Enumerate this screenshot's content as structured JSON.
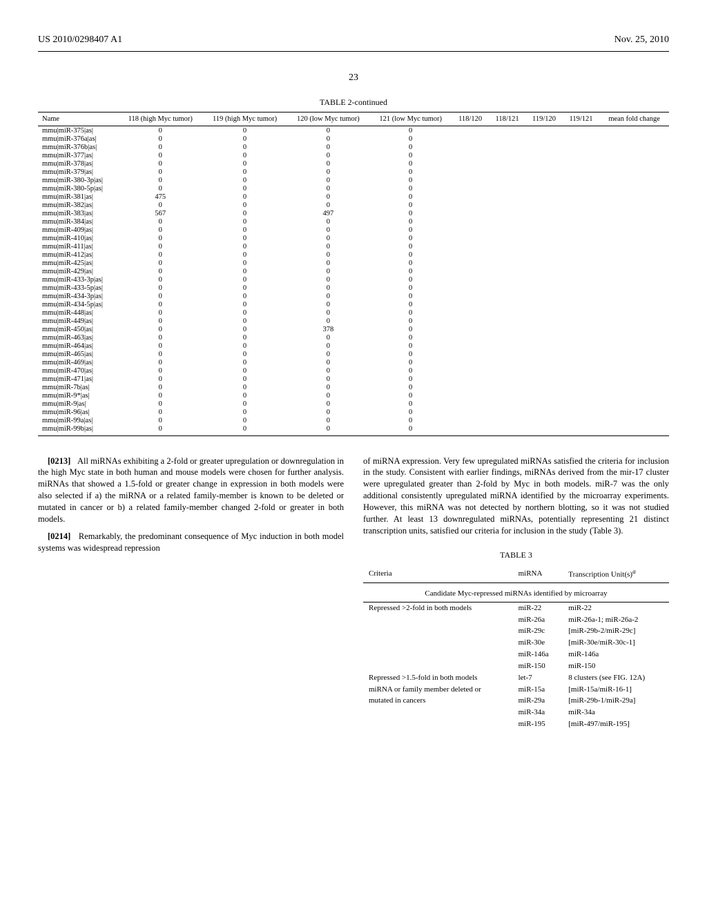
{
  "header": {
    "left": "US 2010/0298407 A1",
    "right": "Nov. 25, 2010"
  },
  "page_number": "23",
  "table2": {
    "title": "TABLE 2-continued",
    "columns": [
      "Name",
      "118 (high Myc tumor)",
      "119 (high Myc tumor)",
      "120 (low Myc tumor)",
      "121 (low Myc tumor)",
      "118/120",
      "118/121",
      "119/120",
      "119/121",
      "mean fold change"
    ],
    "rows": [
      [
        "mmu|miR-375|as|",
        "0",
        "0",
        "0",
        "0",
        "",
        "",
        "",
        "",
        ""
      ],
      [
        "mmu|miR-376a|as|",
        "0",
        "0",
        "0",
        "0",
        "",
        "",
        "",
        "",
        ""
      ],
      [
        "mmu|miR-376b|as|",
        "0",
        "0",
        "0",
        "0",
        "",
        "",
        "",
        "",
        ""
      ],
      [
        "mmu|miR-377|as|",
        "0",
        "0",
        "0",
        "0",
        "",
        "",
        "",
        "",
        ""
      ],
      [
        "mmu|miR-378|as|",
        "0",
        "0",
        "0",
        "0",
        "",
        "",
        "",
        "",
        ""
      ],
      [
        "mmu|miR-379|as|",
        "0",
        "0",
        "0",
        "0",
        "",
        "",
        "",
        "",
        ""
      ],
      [
        "mmu|miR-380-3p|as|",
        "0",
        "0",
        "0",
        "0",
        "",
        "",
        "",
        "",
        ""
      ],
      [
        "mmu|miR-380-5p|as|",
        "0",
        "0",
        "0",
        "0",
        "",
        "",
        "",
        "",
        ""
      ],
      [
        "mmu|miR-381|as|",
        "475",
        "0",
        "0",
        "0",
        "",
        "",
        "",
        "",
        ""
      ],
      [
        "mmu|miR-382|as|",
        "0",
        "0",
        "0",
        "0",
        "",
        "",
        "",
        "",
        ""
      ],
      [
        "mmu|miR-383|as|",
        "567",
        "0",
        "497",
        "0",
        "",
        "",
        "",
        "",
        ""
      ],
      [
        "mmu|miR-384|as|",
        "0",
        "0",
        "0",
        "0",
        "",
        "",
        "",
        "",
        ""
      ],
      [
        "mmu|miR-409|as|",
        "0",
        "0",
        "0",
        "0",
        "",
        "",
        "",
        "",
        ""
      ],
      [
        "mmu|miR-410|as|",
        "0",
        "0",
        "0",
        "0",
        "",
        "",
        "",
        "",
        ""
      ],
      [
        "mmu|miR-411|as|",
        "0",
        "0",
        "0",
        "0",
        "",
        "",
        "",
        "",
        ""
      ],
      [
        "mmu|miR-412|as|",
        "0",
        "0",
        "0",
        "0",
        "",
        "",
        "",
        "",
        ""
      ],
      [
        "mmu|miR-425|as|",
        "0",
        "0",
        "0",
        "0",
        "",
        "",
        "",
        "",
        ""
      ],
      [
        "mmu|miR-429|as|",
        "0",
        "0",
        "0",
        "0",
        "",
        "",
        "",
        "",
        ""
      ],
      [
        "mmu|miR-433-3p|as|",
        "0",
        "0",
        "0",
        "0",
        "",
        "",
        "",
        "",
        ""
      ],
      [
        "mmu|miR-433-5p|as|",
        "0",
        "0",
        "0",
        "0",
        "",
        "",
        "",
        "",
        ""
      ],
      [
        "mmu|miR-434-3p|as|",
        "0",
        "0",
        "0",
        "0",
        "",
        "",
        "",
        "",
        ""
      ],
      [
        "mmu|miR-434-5p|as|",
        "0",
        "0",
        "0",
        "0",
        "",
        "",
        "",
        "",
        ""
      ],
      [
        "mmu|miR-448|as|",
        "0",
        "0",
        "0",
        "0",
        "",
        "",
        "",
        "",
        ""
      ],
      [
        "mmu|miR-449|as|",
        "0",
        "0",
        "0",
        "0",
        "",
        "",
        "",
        "",
        ""
      ],
      [
        "mmu|miR-450|as|",
        "0",
        "0",
        "378",
        "0",
        "",
        "",
        "",
        "",
        ""
      ],
      [
        "mmu|miR-463|as|",
        "0",
        "0",
        "0",
        "0",
        "",
        "",
        "",
        "",
        ""
      ],
      [
        "mmu|miR-464|as|",
        "0",
        "0",
        "0",
        "0",
        "",
        "",
        "",
        "",
        ""
      ],
      [
        "mmu|miR-465|as|",
        "0",
        "0",
        "0",
        "0",
        "",
        "",
        "",
        "",
        ""
      ],
      [
        "mmu|miR-469|as|",
        "0",
        "0",
        "0",
        "0",
        "",
        "",
        "",
        "",
        ""
      ],
      [
        "mmu|miR-470|as|",
        "0",
        "0",
        "0",
        "0",
        "",
        "",
        "",
        "",
        ""
      ],
      [
        "mmu|miR-471|as|",
        "0",
        "0",
        "0",
        "0",
        "",
        "",
        "",
        "",
        ""
      ],
      [
        "mmu|miR-7b|as|",
        "0",
        "0",
        "0",
        "0",
        "",
        "",
        "",
        "",
        ""
      ],
      [
        "mmu|miR-9*|as|",
        "0",
        "0",
        "0",
        "0",
        "",
        "",
        "",
        "",
        ""
      ],
      [
        "mmu|miR-9|as|",
        "0",
        "0",
        "0",
        "0",
        "",
        "",
        "",
        "",
        ""
      ],
      [
        "mmu|miR-96|as|",
        "0",
        "0",
        "0",
        "0",
        "",
        "",
        "",
        "",
        ""
      ],
      [
        "mmu|miR-99a|as|",
        "0",
        "0",
        "0",
        "0",
        "",
        "",
        "",
        "",
        ""
      ],
      [
        "mmu|miR-99b|as|",
        "0",
        "0",
        "0",
        "0",
        "",
        "",
        "",
        "",
        ""
      ]
    ]
  },
  "paragraphs": {
    "p0213_num": "[0213]",
    "p0213": "All miRNAs exhibiting a 2-fold or greater upregulation or downregulation in the high Myc state in both human and mouse models were chosen for further analysis. miRNAs that showed a 1.5-fold or greater change in expression in both models were also selected if a) the miRNA or a related family-member is known to be deleted or mutated in cancer or b) a related family-member changed 2-fold or greater in both models.",
    "p0214_num": "[0214]",
    "p0214": "Remarkably, the predominant consequence of Myc induction in both model systems was widespread repression",
    "col2_p1": "of miRNA expression. Very few upregulated miRNAs satisfied the criteria for inclusion in the study. Consistent with earlier findings, miRNAs derived from the mir-17 cluster were upregulated greater than 2-fold by Myc in both models. miR-7 was the only additional consistently upregulated miRNA identified by the microarray experiments. However, this miRNA was not detected by northern blotting, so it was not studied further. At least 13 downregulated miRNAs, potentially representing 21 distinct transcription units, satisfied our criteria for inclusion in the study (Table 3)."
  },
  "table3": {
    "title": "TABLE 3",
    "caption": "Candidate Myc-repressed miRNAs identified by microarray",
    "columns": [
      "Criteria",
      "miRNA",
      "Transcription Unit(s)"
    ],
    "col3_sup": "a",
    "rows": [
      [
        "Repressed >2-fold in both models",
        "miR-22",
        "miR-22"
      ],
      [
        "",
        "miR-26a",
        "miR-26a-1; miR-26a-2"
      ],
      [
        "",
        "miR-29c",
        "[miR-29b-2/miR-29c]"
      ],
      [
        "",
        "miR-30e",
        "[miR-30e/miR-30c-1]"
      ],
      [
        "",
        "miR-146a",
        "miR-146a"
      ],
      [
        "",
        "miR-150",
        "miR-150"
      ],
      [
        "Repressed >1.5-fold in both models",
        "let-7",
        "8 clusters (see FIG. 12A)"
      ],
      [
        "miRNA or family member deleted or",
        "miR-15a",
        "[miR-15a/miR-16-1]"
      ],
      [
        "mutated in cancers",
        "miR-29a",
        "[miR-29b-1/miR-29a]"
      ],
      [
        "",
        "miR-34a",
        "miR-34a"
      ],
      [
        "",
        "miR-195",
        "[miR-497/miR-195]"
      ]
    ]
  }
}
